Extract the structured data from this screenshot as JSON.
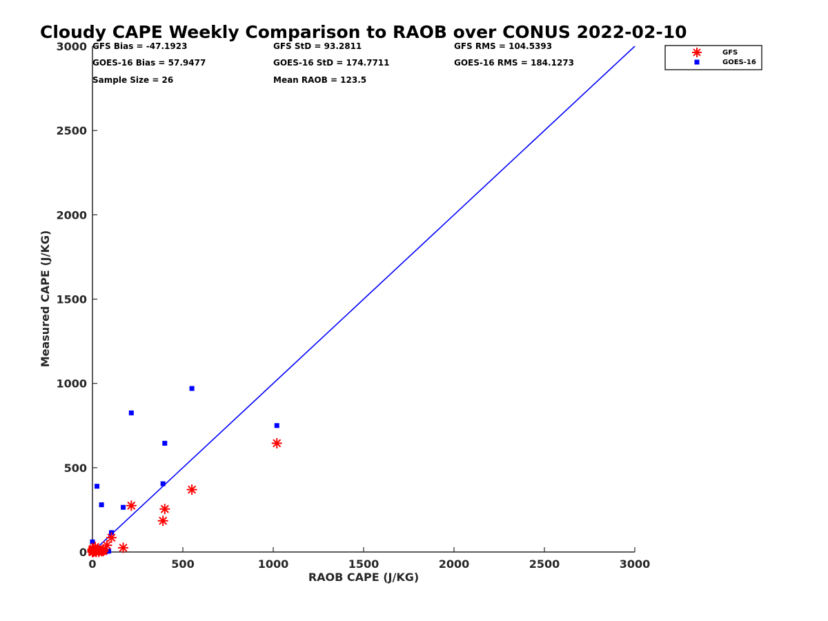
{
  "chart_data": {
    "type": "scatter",
    "title": "Cloudy CAPE Weekly Comparison to RAOB over CONUS 2022-02-10",
    "xlabel": "RAOB CAPE (J/KG)",
    "ylabel": "Measured CAPE (J/KG)",
    "xlim": [
      0,
      3000
    ],
    "ylim": [
      0,
      3000
    ],
    "xticks": [
      "0",
      "500",
      "1000",
      "1500",
      "2000",
      "2500",
      "3000"
    ],
    "yticks": [
      "0",
      "500",
      "1000",
      "1500",
      "2000",
      "2500",
      "3000"
    ],
    "grid": false,
    "legend_position": "top-right",
    "reference_line": {
      "x": [
        0,
        3000
      ],
      "y": [
        0,
        3000
      ],
      "color": "#0000ff"
    },
    "stats": [
      [
        "GFS Bias = -47.1923",
        "GFS StD = 93.2811",
        "GFS RMS = 104.5393"
      ],
      [
        "GOES-16 Bias = 57.9477",
        "GOES-16 StD = 174.7711",
        "GOES-16 RMS = 184.1273"
      ],
      [
        "Sample Size = 26",
        "Mean RAOB = 123.5",
        ""
      ]
    ],
    "series": [
      {
        "name": "GFS",
        "marker": "asterisk",
        "color": "#ff0000",
        "x": [
          1020,
          550,
          400,
          390,
          215,
          170,
          105,
          80,
          60,
          50,
          40,
          30,
          20,
          15,
          10,
          5,
          0,
          0,
          0,
          0,
          0,
          0,
          5,
          25,
          35,
          60
        ],
        "y": [
          645,
          370,
          255,
          185,
          275,
          25,
          85,
          40,
          15,
          5,
          10,
          15,
          0,
          30,
          5,
          20,
          5,
          10,
          0,
          15,
          0,
          5,
          0,
          10,
          0,
          5
        ]
      },
      {
        "name": "GOES-16",
        "marker": "square",
        "color": "#0000ff",
        "x": [
          1020,
          550,
          400,
          390,
          215,
          170,
          105,
          50,
          25,
          0,
          80,
          60,
          40,
          30,
          20,
          15,
          10,
          5,
          0,
          0,
          0,
          0,
          70,
          90,
          45,
          35
        ],
        "y": [
          750,
          970,
          645,
          405,
          825,
          265,
          115,
          280,
          390,
          60,
          5,
          0,
          10,
          5,
          0,
          15,
          5,
          0,
          20,
          10,
          5,
          0,
          0,
          5,
          0,
          10
        ]
      }
    ]
  }
}
